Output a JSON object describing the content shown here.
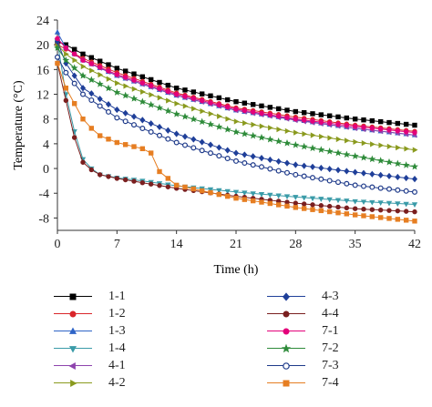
{
  "chart_data": {
    "type": "line",
    "xlabel": "Time (h)",
    "ylabel": "Temperature (°C)",
    "xlim": [
      0,
      42
    ],
    "ylim": [
      -10,
      24
    ],
    "xticks": [
      0,
      7,
      14,
      21,
      28,
      35,
      42
    ],
    "yticks": [
      -8,
      -4,
      0,
      4,
      8,
      12,
      16,
      20,
      24
    ],
    "legend_placement": "below",
    "grid": false,
    "series": [
      {
        "name": "1-1",
        "color": "#000000",
        "marker": "square",
        "x": [
          0,
          1,
          3,
          7,
          14,
          21,
          28,
          35,
          42
        ],
        "y": [
          20.5,
          20.0,
          18.5,
          16.2,
          13.0,
          10.8,
          9.2,
          8.0,
          7.0
        ]
      },
      {
        "name": "1-2",
        "color": "#d9262b",
        "marker": "circle",
        "x": [
          0,
          1,
          3,
          7,
          14,
          21,
          28,
          35,
          42
        ],
        "y": [
          20.0,
          19.3,
          17.8,
          15.5,
          12.2,
          9.8,
          8.3,
          7.0,
          6.0
        ]
      },
      {
        "name": "1-3",
        "color": "#2e64c7",
        "marker": "triangle-up",
        "x": [
          0,
          1,
          3,
          7,
          14,
          21,
          28,
          35,
          42
        ],
        "y": [
          22.0,
          19.5,
          17.5,
          15.0,
          11.8,
          9.4,
          7.9,
          6.5,
          5.4
        ]
      },
      {
        "name": "1-4",
        "color": "#3a9ba8",
        "marker": "triangle-down",
        "x": [
          0,
          1,
          2,
          3,
          4,
          5,
          7,
          10,
          14,
          21,
          28,
          35,
          42
        ],
        "y": [
          20.5,
          12.0,
          6.0,
          1.5,
          0.0,
          -1.0,
          -1.5,
          -2.0,
          -2.8,
          -3.8,
          -4.6,
          -5.3,
          -5.8
        ]
      },
      {
        "name": "4-1",
        "color": "#8e44ad",
        "marker": "triangle-left",
        "x": [
          0,
          1,
          3,
          7,
          14,
          21,
          28,
          35,
          42
        ],
        "y": [
          21.0,
          19.5,
          17.5,
          15.0,
          11.8,
          9.4,
          7.8,
          6.5,
          5.4
        ]
      },
      {
        "name": "4-2",
        "color": "#8a9a1e",
        "marker": "triangle-right",
        "x": [
          0,
          1,
          3,
          7,
          14,
          21,
          28,
          35,
          42
        ],
        "y": [
          20.0,
          18.5,
          16.5,
          13.8,
          10.5,
          7.6,
          5.8,
          4.3,
          3.0
        ]
      },
      {
        "name": "4-3",
        "color": "#1f3f99",
        "marker": "diamond",
        "x": [
          0,
          1,
          3,
          7,
          14,
          21,
          28,
          35,
          42
        ],
        "y": [
          20.5,
          17.0,
          13.0,
          9.5,
          5.6,
          2.5,
          0.6,
          -0.6,
          -1.7
        ]
      },
      {
        "name": "4-4",
        "color": "#7a1f1f",
        "marker": "circle",
        "x": [
          0,
          1,
          2,
          3,
          4,
          5,
          7,
          10,
          14,
          21,
          28,
          35,
          42
        ],
        "y": [
          17.0,
          11.0,
          5.0,
          1.0,
          -0.2,
          -1.0,
          -1.6,
          -2.3,
          -3.2,
          -4.5,
          -5.6,
          -6.5,
          -7.0
        ]
      },
      {
        "name": "7-1",
        "color": "#e3007a",
        "marker": "circle",
        "x": [
          0,
          1,
          3,
          7,
          14,
          21,
          28,
          35,
          42
        ],
        "y": [
          21.0,
          19.5,
          17.5,
          15.2,
          12.0,
          9.6,
          8.0,
          6.8,
          5.8
        ]
      },
      {
        "name": "7-2",
        "color": "#2e8b3a",
        "marker": "star",
        "x": [
          0,
          1,
          3,
          7,
          14,
          21,
          28,
          35,
          42
        ],
        "y": [
          19.5,
          17.5,
          15.0,
          12.3,
          8.8,
          5.9,
          3.8,
          2.0,
          0.3
        ]
      },
      {
        "name": "7-3",
        "color": "#1e3a8a",
        "marker": "circle-open",
        "x": [
          0,
          1,
          3,
          7,
          14,
          21,
          28,
          35,
          42
        ],
        "y": [
          18.0,
          15.5,
          12.0,
          8.2,
          4.2,
          1.2,
          -1.0,
          -2.7,
          -3.8
        ]
      },
      {
        "name": "7-4",
        "color": "#e67e22",
        "marker": "square",
        "x": [
          0,
          1,
          2,
          3,
          4,
          5,
          7,
          10,
          11,
          12,
          14,
          21,
          28,
          35,
          42
        ],
        "y": [
          17.0,
          13.0,
          10.5,
          8.0,
          6.5,
          5.3,
          4.2,
          3.2,
          2.5,
          -0.5,
          -2.7,
          -4.8,
          -6.3,
          -7.5,
          -8.5
        ]
      }
    ]
  }
}
